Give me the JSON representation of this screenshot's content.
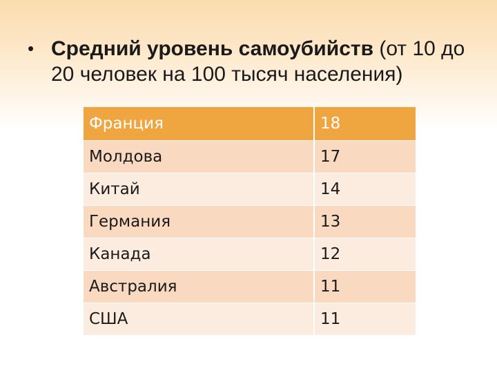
{
  "slide": {
    "bullet_symbol": "•",
    "title_bold": "Средний уровень самоубийств",
    "title_rest": " (от 10 до 20 человек на 100 тысяч населения)"
  },
  "table": {
    "header": {
      "country": "Франция",
      "value": "18"
    },
    "rows": [
      {
        "country": "Молдова",
        "value": "17"
      },
      {
        "country": "Китай",
        "value": "14"
      },
      {
        "country": "Германия",
        "value": "13"
      },
      {
        "country": "Канада",
        "value": "12"
      },
      {
        "country": "Австралия",
        "value": "11"
      },
      {
        "country": "США",
        "value": "11"
      }
    ]
  },
  "colors": {
    "header_fill": "#f0a640",
    "row_dark": "#f9d9bf",
    "row_light": "#fcecdf",
    "background_top": "#fbdcae"
  }
}
